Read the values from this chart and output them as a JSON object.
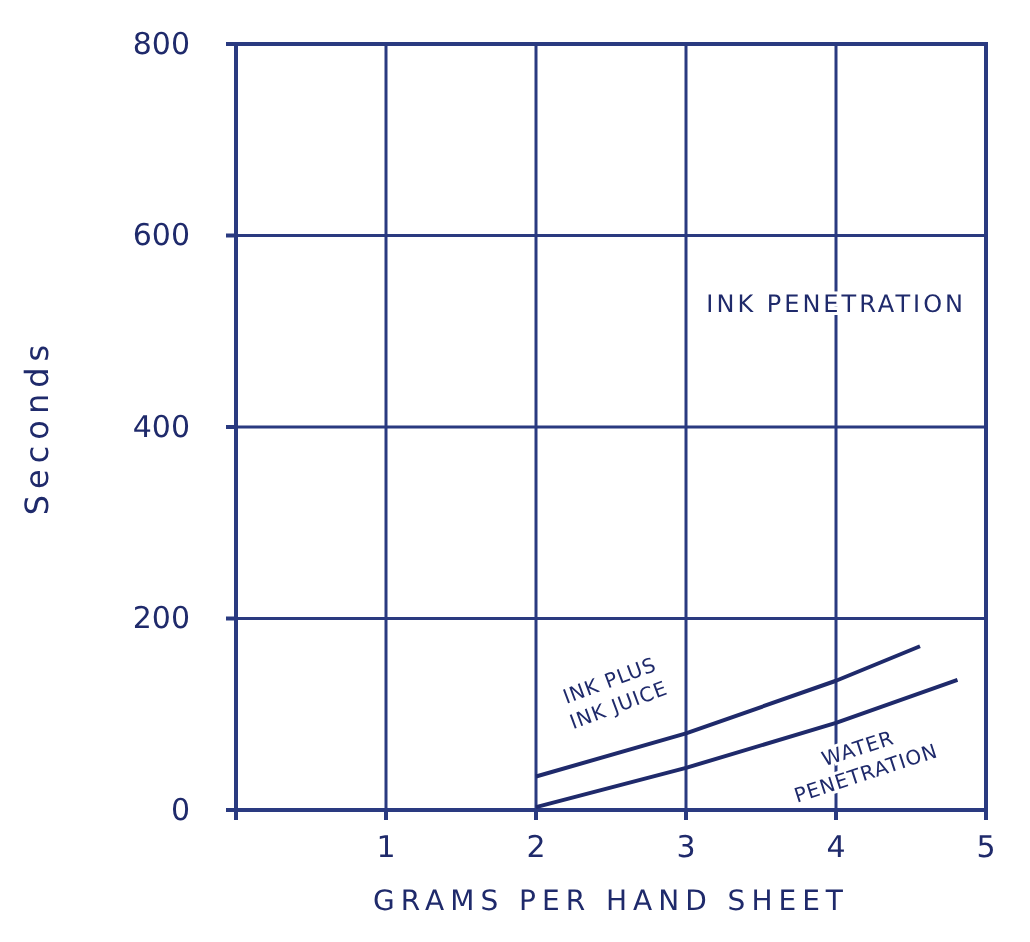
{
  "chart_data": {
    "type": "line",
    "xlabel": "GRAMS PER HAND SHEET",
    "ylabel": "Seconds",
    "xlim": [
      0,
      5
    ],
    "ylim": [
      0,
      800
    ],
    "xticks": [
      1,
      2,
      3,
      4,
      5
    ],
    "yticks": [
      0,
      200,
      400,
      600,
      800
    ],
    "grid": true,
    "marker": "none",
    "line_style": "solid",
    "annotations": [
      "INK PENETRATION"
    ],
    "series": [
      {
        "name": "INK PLUS INK JUICE",
        "color": "#1f2a6b",
        "x": [
          2,
          3,
          4,
          4.56
        ],
        "values": [
          35,
          80,
          135,
          171
        ]
      },
      {
        "name": "WATER PENETRATION",
        "color": "#1f2a6b",
        "x": [
          2,
          3,
          4,
          4.81
        ],
        "values": [
          3,
          44,
          91,
          136
        ]
      }
    ]
  }
}
